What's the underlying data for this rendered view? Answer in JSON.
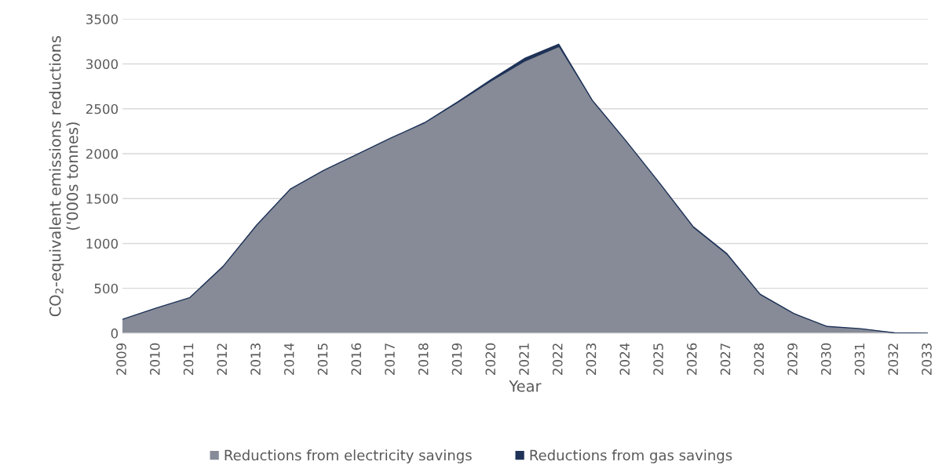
{
  "chart_data": {
    "type": "area",
    "stacked": true,
    "xlabel": "Year",
    "ylabel": "CO$_{2}$-equivalent emissions reductions\n('000s tonnes)",
    "categories": [
      "2009",
      "2010",
      "2011",
      "2012",
      "2013",
      "2014",
      "2015",
      "2016",
      "2017",
      "2018",
      "2019",
      "2020",
      "2021",
      "2022",
      "2023",
      "2024",
      "2025",
      "2026",
      "2027",
      "2028",
      "2029",
      "2030",
      "2031",
      "2032",
      "2033"
    ],
    "series": [
      {
        "name": "Reductions from electricity savings",
        "color": "#868b97",
        "values": [
          150,
          275,
          390,
          740,
          1200,
          1600,
          1810,
          1990,
          2170,
          2330,
          2560,
          2800,
          3020,
          3180,
          2580,
          2130,
          1660,
          1170,
          870,
          420,
          210,
          70,
          45,
          5,
          0
        ]
      },
      {
        "name": "Reductions from gas savings",
        "color": "#1f3358",
        "values": [
          5,
          5,
          5,
          5,
          5,
          5,
          5,
          5,
          5,
          15,
          20,
          30,
          45,
          40,
          15,
          15,
          15,
          20,
          20,
          15,
          10,
          5,
          5,
          0,
          0
        ]
      }
    ],
    "ylim": [
      0,
      3500
    ],
    "yticks": [
      0,
      500,
      1000,
      1500,
      2000,
      2500,
      3000,
      3500
    ],
    "grid": "y",
    "legend": "bottom"
  }
}
